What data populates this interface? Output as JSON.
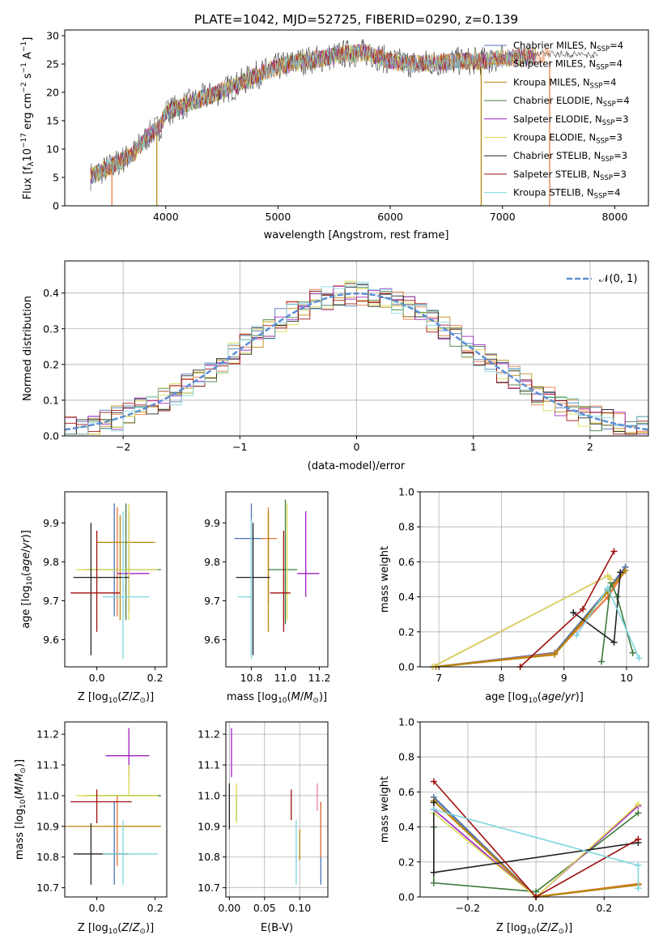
{
  "chart_data": [
    {
      "type": "line",
      "id": "spectrum",
      "title": "PLATE=1042, MJD=52725, FIBERID=0290, z=0.139",
      "xlabel": "wavelength [Angstrom, rest frame]",
      "ylabel": "Flux [f_λ 10^-17 erg cm^-2 s^-1 A^-1]",
      "xlim": [
        3100,
        8300
      ],
      "ylim": [
        0,
        31
      ],
      "xticks": [
        4000,
        5000,
        6000,
        7000,
        8000
      ],
      "yticks": [
        0,
        5,
        10,
        15,
        20,
        25,
        30
      ],
      "legend_position": "top-right",
      "series": [
        {
          "name": "Chabrier MILES, N_SSP=4",
          "color": "#4c72b0"
        },
        {
          "name": "Salpeter MILES, N_SSP=4",
          "color": "#e8743b"
        },
        {
          "name": "Kroupa MILES, N_SSP=4",
          "color": "#b8860b"
        },
        {
          "name": "Chabrier ELODIE, N_SSP=4",
          "color": "#3d7a3d"
        },
        {
          "name": "Salpeter ELODIE, N_SSP=3",
          "color": "#a020c0"
        },
        {
          "name": "Kroupa ELODIE, N_SSP=3",
          "color": "#dada50"
        },
        {
          "name": "Chabrier STELIB, N_SSP=3",
          "color": "#222222"
        },
        {
          "name": "Salpeter STELIB, N_SSP=3",
          "color": "#a01010"
        },
        {
          "name": "Kroupa STELIB, N_SSP=4",
          "color": "#7fd6e0"
        }
      ],
      "continuum": {
        "x": [
          3330,
          3500,
          3700,
          3850,
          3950,
          4000,
          4200,
          4400,
          4600,
          4800,
          5000,
          5200,
          5400,
          5600,
          5800,
          6000,
          6200,
          6400,
          6600,
          6800,
          7000,
          7200,
          7400
        ],
        "y": [
          5.2,
          6.8,
          9.0,
          12.5,
          14.0,
          16.5,
          18.0,
          19.5,
          21.0,
          23.0,
          24.5,
          25.5,
          26.0,
          26.8,
          27.0,
          25.5,
          25.0,
          25.2,
          25.5,
          25.5,
          26.0,
          26.3,
          26.6
        ]
      },
      "notable_features": [
        {
          "x": 3520,
          "y_low": 0,
          "series": "Salpeter MILES, N_SSP=4"
        },
        {
          "x": 3920,
          "y_low": 0,
          "series": "Kroupa MILES, N_SSP=4"
        },
        {
          "x": 6810,
          "y_low": 0,
          "series": "Kroupa MILES, N_SSP=4"
        },
        {
          "x": 7420,
          "y_low": 0,
          "series": "Salpeter MILES, N_SSP=4"
        }
      ]
    },
    {
      "type": "line",
      "id": "residuals",
      "xlabel": "(data-model)/error",
      "ylabel": "Normed distribution",
      "xlim": [
        -2.5,
        2.5
      ],
      "ylim": [
        0,
        0.49
      ],
      "xticks": [
        -2,
        -1,
        0,
        1,
        2
      ],
      "yticks": [
        0.0,
        0.1,
        0.2,
        0.3,
        0.4
      ],
      "legend_position": "top-right",
      "gaussian": {
        "label": "𝒩(0, 1)",
        "mu": 0,
        "sigma": 1,
        "color": "#5b8fd6"
      },
      "bin_width": 0.1,
      "bin_start": -2.5,
      "hist_series_count": 9
    },
    {
      "type": "scatter",
      "id": "age_vs_Z",
      "xlabel": "Z [log10(Z/Z⊙)]",
      "ylabel": "age [log10(age/yr)]",
      "xlim": [
        -0.11,
        0.24
      ],
      "ylim": [
        9.53,
        9.98
      ],
      "xticks": [
        0.0,
        0.2
      ],
      "yticks": [
        9.6,
        9.7,
        9.8,
        9.9
      ],
      "points": [
        {
          "series": "Chabrier MILES, N_SSP=4",
          "x": 0.06,
          "y": 9.85,
          "xerr": [
            0.0,
            0.0
          ],
          "yerr": [
            0.19,
            0.1
          ]
        },
        {
          "series": "Salpeter MILES, N_SSP=4",
          "x": 0.07,
          "y": 9.86,
          "xerr": [
            0.0,
            0.0
          ],
          "yerr": [
            0.2,
            0.08
          ]
        },
        {
          "series": "Kroupa MILES, N_SSP=4",
          "x": 0.08,
          "y": 9.85,
          "xerr": [
            0.08,
            0.12
          ],
          "yerr": [
            0.2,
            0.07
          ]
        },
        {
          "series": "Chabrier ELODIE, N_SSP=4",
          "x": 0.1,
          "y": 9.78,
          "xerr": [
            0.14,
            0.12
          ],
          "yerr": [
            0.13,
            0.17
          ]
        },
        {
          "series": "Salpeter ELODIE, N_SSP=3",
          "x": 0.11,
          "y": 9.77,
          "xerr": [
            0.04,
            0.07
          ],
          "yerr": [
            0.1,
            0.16
          ]
        },
        {
          "series": "Kroupa ELODIE, N_SSP=3",
          "x": 0.11,
          "y": 9.78,
          "xerr": [
            0.18,
            0.1
          ],
          "yerr": [
            0.13,
            0.17
          ]
        },
        {
          "series": "Chabrier STELIB, N_SSP=3",
          "x": -0.02,
          "y": 9.76,
          "xerr": [
            0.06,
            0.13
          ],
          "yerr": [
            0.2,
            0.14
          ]
        },
        {
          "series": "Salpeter STELIB, N_SSP=3",
          "x": 0.0,
          "y": 9.72,
          "xerr": [
            0.09,
            0.08
          ],
          "yerr": [
            0.1,
            0.16
          ]
        },
        {
          "series": "Kroupa STELIB, N_SSP=4",
          "x": 0.09,
          "y": 9.71,
          "xerr": [
            0.07,
            0.09
          ],
          "yerr": [
            0.16,
            0.22
          ]
        }
      ]
    },
    {
      "type": "scatter",
      "id": "age_vs_mass",
      "xlabel": "mass [log10(M/M⊙)]",
      "ylabel": "",
      "xlim": [
        10.65,
        11.25
      ],
      "ylim": [
        9.53,
        9.98
      ],
      "xticks": [
        10.8,
        11.0,
        11.2
      ],
      "yticks": [
        9.6,
        9.7,
        9.8,
        9.9
      ],
      "points": [
        {
          "series": "Chabrier MILES, N_SSP=4",
          "x": 10.8,
          "y": 9.86,
          "xerr": [
            0.1,
            0.07
          ],
          "yerr": [
            0.3,
            0.09
          ]
        },
        {
          "series": "Salpeter MILES, N_SSP=4",
          "x": 10.9,
          "y": 9.86,
          "xerr": [
            0.04,
            0.05
          ],
          "yerr": [
            0.17,
            0.08
          ]
        },
        {
          "series": "Kroupa MILES, N_SSP=4",
          "x": 10.9,
          "y": 9.78,
          "xerr": [
            0.0,
            0.0
          ],
          "yerr": [
            0.16,
            0.15
          ]
        },
        {
          "series": "Chabrier ELODIE, N_SSP=4",
          "x": 11.0,
          "y": 9.78,
          "xerr": [
            0.1,
            0.07
          ],
          "yerr": [
            0.14,
            0.18
          ]
        },
        {
          "series": "Salpeter ELODIE, N_SSP=3",
          "x": 11.12,
          "y": 9.77,
          "xerr": [
            0.05,
            0.08
          ],
          "yerr": [
            0.06,
            0.16
          ]
        },
        {
          "series": "Kroupa ELODIE, N_SSP=3",
          "x": 11.01,
          "y": 9.78,
          "xerr": [
            0.0,
            0.0
          ],
          "yerr": [
            0.13,
            0.17
          ]
        },
        {
          "series": "Chabrier STELIB, N_SSP=3",
          "x": 10.81,
          "y": 9.76,
          "xerr": [
            0.1,
            0.1
          ],
          "yerr": [
            0.2,
            0.14
          ]
        },
        {
          "series": "Salpeter STELIB, N_SSP=3",
          "x": 10.99,
          "y": 9.72,
          "xerr": [
            0.08,
            0.04
          ],
          "yerr": [
            0.1,
            0.16
          ]
        },
        {
          "series": "Kroupa STELIB, N_SSP=4",
          "x": 10.8,
          "y": 9.71,
          "xerr": [
            0.08,
            0.0
          ],
          "yerr": [
            0.16,
            0.2
          ]
        }
      ]
    },
    {
      "type": "line",
      "id": "weight_vs_age",
      "xlabel": "age [log10(age/yr)]",
      "ylabel": "mass weight",
      "xlim": [
        6.7,
        10.35
      ],
      "ylim": [
        0,
        1.0
      ],
      "xticks": [
        7,
        8,
        9,
        10
      ],
      "yticks": [
        0.0,
        0.2,
        0.4,
        0.6,
        0.8,
        1.0
      ],
      "series": [
        {
          "name": "Chabrier MILES, N_SSP=4",
          "x": [
            6.95,
            8.85,
            9.7,
            9.98
          ],
          "y": [
            0.0,
            0.08,
            0.44,
            0.57
          ]
        },
        {
          "name": "Salpeter MILES, N_SSP=4",
          "x": [
            6.95,
            8.85,
            9.7,
            9.98
          ],
          "y": [
            0.0,
            0.075,
            0.4,
            0.55
          ]
        },
        {
          "name": "Kroupa MILES, N_SSP=4",
          "x": [
            6.95,
            8.85,
            9.7,
            9.98
          ],
          "y": [
            0.0,
            0.07,
            0.43,
            0.55
          ]
        },
        {
          "name": "Chabrier ELODIE, N_SSP=4",
          "x": [
            9.6,
            9.75,
            9.85,
            10.1
          ],
          "y": [
            0.03,
            0.48,
            0.4,
            0.08
          ]
        },
        {
          "name": "Salpeter ELODIE, N_SSP=3",
          "x": [
            6.9,
            9.7,
            9.75
          ],
          "y": [
            0.0,
            0.52,
            0.5
          ]
        },
        {
          "name": "Kroupa ELODIE, N_SSP=3",
          "x": [
            6.9,
            9.7,
            9.75
          ],
          "y": [
            0.0,
            0.52,
            0.5
          ]
        },
        {
          "name": "Chabrier STELIB, N_SSP=3",
          "x": [
            9.15,
            9.8,
            9.9
          ],
          "y": [
            0.31,
            0.14,
            0.54
          ]
        },
        {
          "name": "Salpeter STELIB, N_SSP=3",
          "x": [
            8.3,
            9.3,
            9.8
          ],
          "y": [
            0.0,
            0.33,
            0.66
          ]
        },
        {
          "name": "Kroupa STELIB, N_SSP=4",
          "x": [
            9.2,
            9.7,
            10.2
          ],
          "y": [
            0.18,
            0.45,
            0.05
          ]
        }
      ]
    },
    {
      "type": "scatter",
      "id": "mass_vs_Z",
      "xlabel": "Z [log10(Z/Z⊙)]",
      "ylabel": "mass [log10(M/M⊙)]",
      "xlim": [
        -0.11,
        0.24
      ],
      "ylim": [
        10.67,
        11.24
      ],
      "xticks": [
        0.0,
        0.2
      ],
      "yticks": [
        10.7,
        10.8,
        10.9,
        11.0,
        11.1,
        11.2
      ],
      "points": [
        {
          "series": "Chabrier MILES, N_SSP=4",
          "x": 0.06,
          "y": 10.8,
          "xerr": [
            0.0,
            0.0
          ],
          "yerr": [
            0.09,
            0.18
          ]
        },
        {
          "series": "Salpeter MILES, N_SSP=4",
          "x": 0.07,
          "y": 10.9,
          "xerr": [
            0.04,
            0.15
          ],
          "yerr": [
            0.13,
            0.1
          ]
        },
        {
          "series": "Kroupa MILES, N_SSP=4",
          "x": 0.06,
          "y": 10.9,
          "xerr": [
            0.17,
            0.16
          ],
          "yerr": [
            0.0,
            0.0
          ]
        },
        {
          "series": "Chabrier ELODIE, N_SSP=4",
          "x": 0.1,
          "y": 11.0,
          "xerr": [
            0.14,
            0.12
          ],
          "yerr": [
            0.0,
            0.0
          ]
        },
        {
          "series": "Salpeter ELODIE, N_SSP=3",
          "x": 0.11,
          "y": 11.13,
          "xerr": [
            0.08,
            0.07
          ],
          "yerr": [
            0.07,
            0.09
          ]
        },
        {
          "series": "Kroupa ELODIE, N_SSP=3",
          "x": 0.11,
          "y": 11.0,
          "xerr": [
            0.18,
            0.1
          ],
          "yerr": [
            0.0,
            0.1
          ]
        },
        {
          "series": "Chabrier STELIB, N_SSP=3",
          "x": -0.02,
          "y": 10.81,
          "xerr": [
            0.06,
            0.13
          ],
          "yerr": [
            0.1,
            0.1
          ]
        },
        {
          "series": "Salpeter STELIB, N_SSP=3",
          "x": 0.0,
          "y": 10.98,
          "xerr": [
            0.09,
            0.12
          ],
          "yerr": [
            0.07,
            0.04
          ]
        },
        {
          "series": "Kroupa STELIB, N_SSP=4",
          "x": 0.09,
          "y": 10.81,
          "xerr": [
            0.07,
            0.12
          ],
          "yerr": [
            0.1,
            0.11
          ]
        }
      ]
    },
    {
      "type": "scatter",
      "id": "mass_vs_EBV",
      "xlabel": "E(B-V)",
      "ylabel": "",
      "xlim": [
        -0.005,
        0.14
      ],
      "ylim": [
        10.67,
        11.24
      ],
      "xticks": [
        0.0,
        0.05,
        0.1
      ],
      "yticks": [
        10.7,
        10.8,
        10.9,
        11.0,
        11.1,
        11.2
      ],
      "points": [
        {
          "series": "Chabrier MILES, N_SSP=4",
          "x": 0.13,
          "y": 10.8,
          "yerr": [
            0.09,
            0.18
          ]
        },
        {
          "series": "Salpeter MILES, N_SSP=4",
          "x": 0.13,
          "y": 10.9,
          "yerr": [
            0.1,
            0.08
          ]
        },
        {
          "series": "Kroupa MILES, N_SSP=4",
          "x": 0.1,
          "y": 10.84,
          "yerr": [
            0.05,
            0.05
          ]
        },
        {
          "series": "Chabrier ELODIE, N_SSP=4",
          "x": 0.01,
          "y": 11.0,
          "yerr": [
            0.08,
            0.0
          ]
        },
        {
          "series": "Salpeter ELODIE, N_SSP=3",
          "x": 0.003,
          "y": 11.13,
          "yerr": [
            0.07,
            0.09
          ]
        },
        {
          "series": "Kroupa ELODIE, N_SSP=3",
          "x": 0.01,
          "y": 11.0,
          "yerr": [
            0.09,
            0.04
          ]
        },
        {
          "series": "Chabrier STELIB, N_SSP=3",
          "x": 0.0,
          "y": 10.98,
          "yerr": [
            0.09,
            0.06
          ]
        },
        {
          "series": "Salpeter STELIB, N_SSP=3",
          "x": 0.088,
          "y": 10.98,
          "yerr": [
            0.06,
            0.04
          ]
        },
        {
          "series": "Kroupa STELIB, N_SSP=4",
          "x": 0.095,
          "y": 10.81,
          "yerr": [
            0.1,
            0.11
          ]
        }
      ],
      "extra_marks": [
        {
          "color": "#f07ab0",
          "x": 0.125,
          "y": 11.0,
          "yerr": [
            0.05,
            0.04
          ]
        }
      ]
    },
    {
      "type": "line",
      "id": "weight_vs_Z",
      "xlabel": "Z [log10(Z/Z⊙)]",
      "ylabel": "mass weight",
      "xlim": [
        -0.34,
        0.33
      ],
      "ylim": [
        0,
        1.0
      ],
      "xticks": [
        -0.2,
        0.0,
        0.2
      ],
      "yticks": [
        0.0,
        0.2,
        0.4,
        0.6,
        0.8,
        1.0
      ],
      "series": [
        {
          "name": "Chabrier MILES, N_SSP=4",
          "x": [
            -0.3,
            0.0,
            0.3
          ],
          "y": [
            0.57,
            0.0,
            0.07
          ]
        },
        {
          "name": "Salpeter MILES, N_SSP=4",
          "x": [
            -0.3,
            0.0,
            0.3
          ],
          "y": [
            0.55,
            0.0,
            0.075
          ]
        },
        {
          "name": "Kroupa MILES, N_SSP=4",
          "x": [
            -0.3,
            0.0,
            0.3
          ],
          "y": [
            0.55,
            0.0,
            0.07
          ]
        },
        {
          "name": "Chabrier ELODIE, N_SSP=4",
          "x": [
            -0.3,
            -0.3,
            0.0,
            0.3
          ],
          "y": [
            0.4,
            0.08,
            0.03,
            0.48
          ]
        },
        {
          "name": "Salpeter ELODIE, N_SSP=3",
          "x": [
            -0.3,
            0.0,
            0.3
          ],
          "y": [
            0.5,
            0.0,
            0.52
          ]
        },
        {
          "name": "Kroupa ELODIE, N_SSP=3",
          "x": [
            -0.3,
            0.0,
            0.3
          ],
          "y": [
            0.48,
            0.0,
            0.53
          ]
        },
        {
          "name": "Chabrier STELIB, N_SSP=3",
          "x": [
            -0.3,
            -0.3,
            0.3
          ],
          "y": [
            0.54,
            0.14,
            0.31
          ]
        },
        {
          "name": "Salpeter STELIB, N_SSP=3",
          "x": [
            -0.3,
            0.0,
            0.3
          ],
          "y": [
            0.66,
            0.0,
            0.33
          ]
        },
        {
          "name": "Kroupa STELIB, N_SSP=4",
          "x": [
            -0.3,
            0.3,
            0.3
          ],
          "y": [
            0.5,
            0.18,
            0.05
          ]
        }
      ]
    }
  ]
}
